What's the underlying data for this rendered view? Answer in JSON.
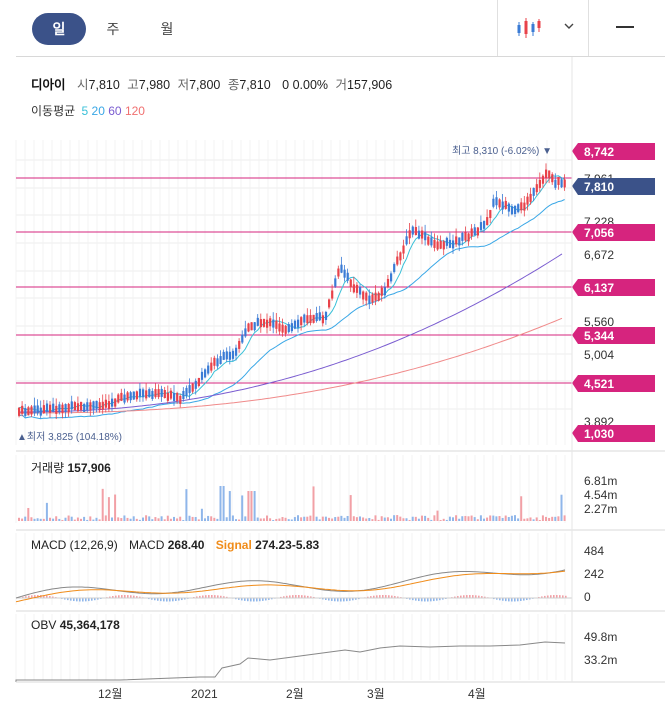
{
  "tabs": [
    {
      "label": "일",
      "active": true
    },
    {
      "label": "주",
      "active": false
    },
    {
      "label": "월",
      "active": false
    }
  ],
  "toolbar": {
    "chart_type_icon": "candlestick-icon",
    "dropdown_icon": "chevron-down-icon",
    "menu_icon": "hamburger-icon"
  },
  "quote": {
    "name": "디아이",
    "open_label": "시",
    "open": "7,810",
    "high_label": "고",
    "high": "7,980",
    "low_label": "저",
    "low": "7,800",
    "close_label": "종",
    "close": "7,810",
    "change": "0",
    "change_pct": "0.00%",
    "volume_label": "거",
    "volume": "157,906"
  },
  "moving_avg": {
    "label": "이동평균",
    "periods": [
      {
        "value": "5",
        "color": "#39c0d8"
      },
      {
        "value": "20",
        "color": "#39a7e6"
      },
      {
        "value": "60",
        "color": "#7a5cd0"
      },
      {
        "value": "120",
        "color": "#f07070"
      }
    ]
  },
  "price_pane": {
    "high_marker": "최고 8,310 (-6.02%) ▼",
    "low_marker": "▲최저 3,825 (104.18%)",
    "axis_labels": [
      "7,228",
      "6,672",
      "5,560",
      "5,004",
      "3,892"
    ],
    "axis_partial": "7,961",
    "level_tags": [
      "8,742",
      "7,056",
      "6,137",
      "5,344",
      "4,521",
      "1,030"
    ],
    "current_tag": "7,810"
  },
  "volume_pane": {
    "title": "거래량",
    "value": "157,906",
    "axis": [
      "6.81m",
      "4.54m",
      "2.27m"
    ]
  },
  "macd_pane": {
    "title": "MACD (12,26,9)",
    "macd_label": "MACD",
    "macd_value": "268.40",
    "signal_label": "Signal",
    "signal_value": "274.23-5.83",
    "axis": [
      "484",
      "242",
      "0"
    ]
  },
  "obv_pane": {
    "title": "OBV",
    "value": "45,364,178",
    "axis": [
      "49.8m",
      "33.2m"
    ]
  },
  "x_axis": [
    "12월",
    "2021",
    "2월",
    "3월",
    "4월"
  ],
  "colors": {
    "up": "#e8424a",
    "down": "#3a7bd5",
    "tag": "#d6247e",
    "current_tag": "#3b5289",
    "signal": "#f08c1a"
  }
}
